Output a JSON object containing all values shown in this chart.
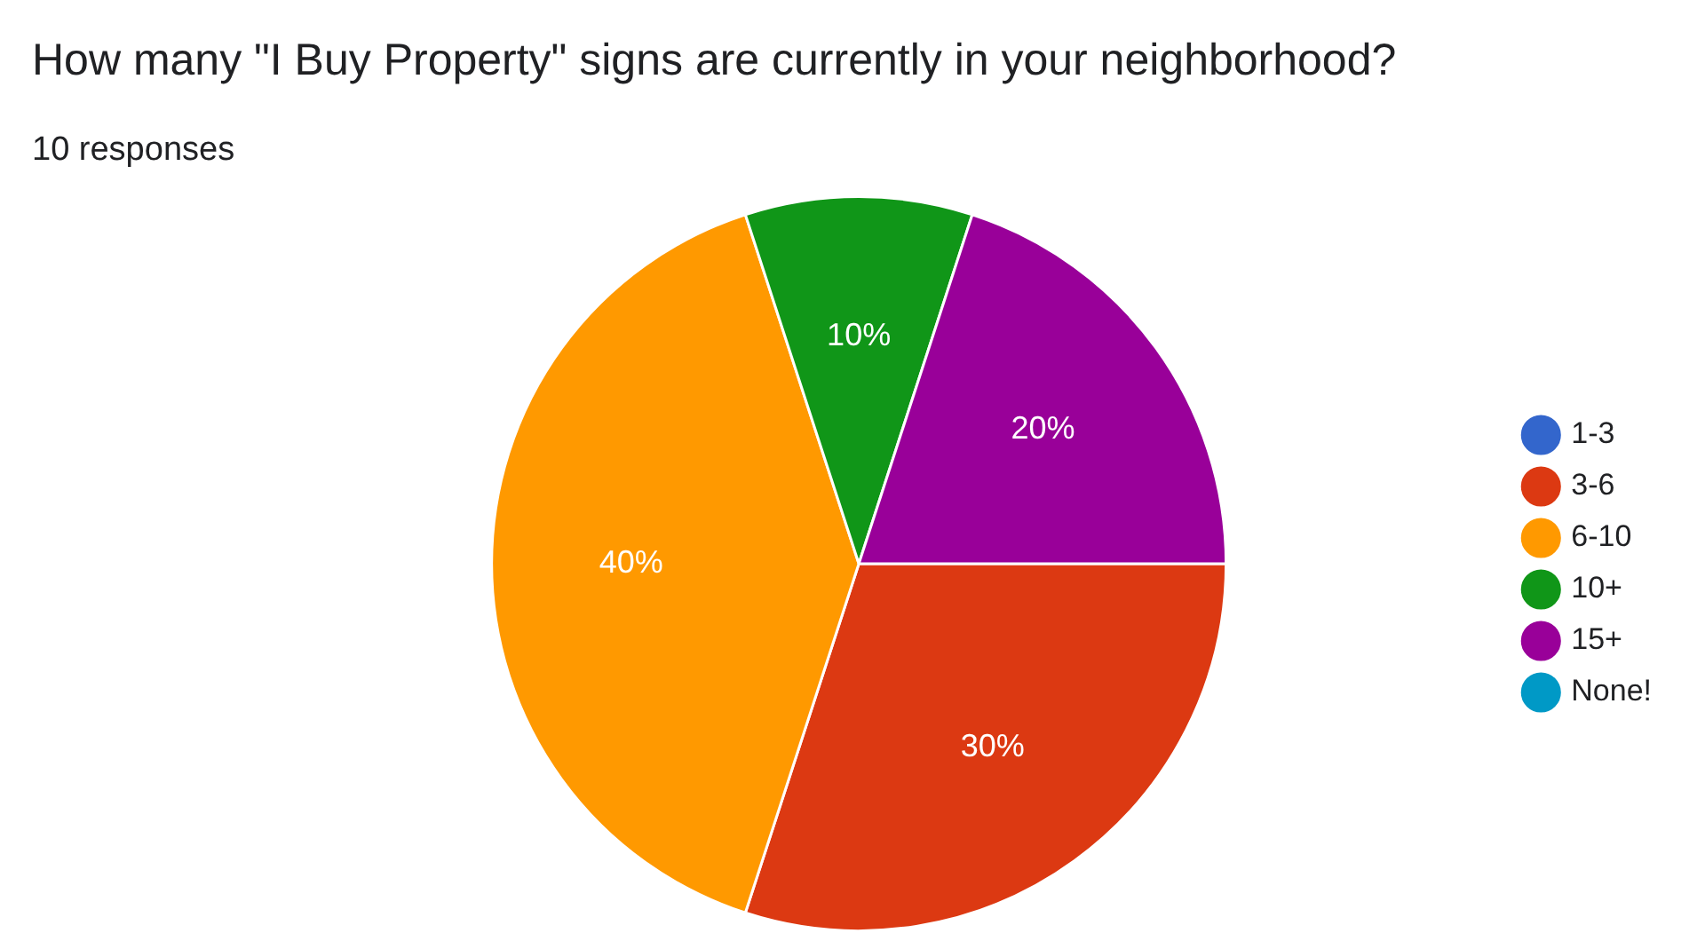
{
  "chart_data": {
    "type": "pie",
    "title": "How many \"I Buy Property\" signs are currently in your neighborhood?",
    "subtitle": "10 responses",
    "categories": [
      "1-3",
      "3-6",
      "6-10",
      "10+",
      "15+",
      "None!"
    ],
    "values": [
      0,
      30,
      40,
      10,
      20,
      0
    ],
    "value_labels": [
      null,
      "30%",
      "40%",
      "10%",
      "20%",
      null
    ],
    "colors": [
      "#3366cc",
      "#dc3912",
      "#ff9900",
      "#109618",
      "#990099",
      "#0099c6"
    ],
    "legend": "right"
  }
}
